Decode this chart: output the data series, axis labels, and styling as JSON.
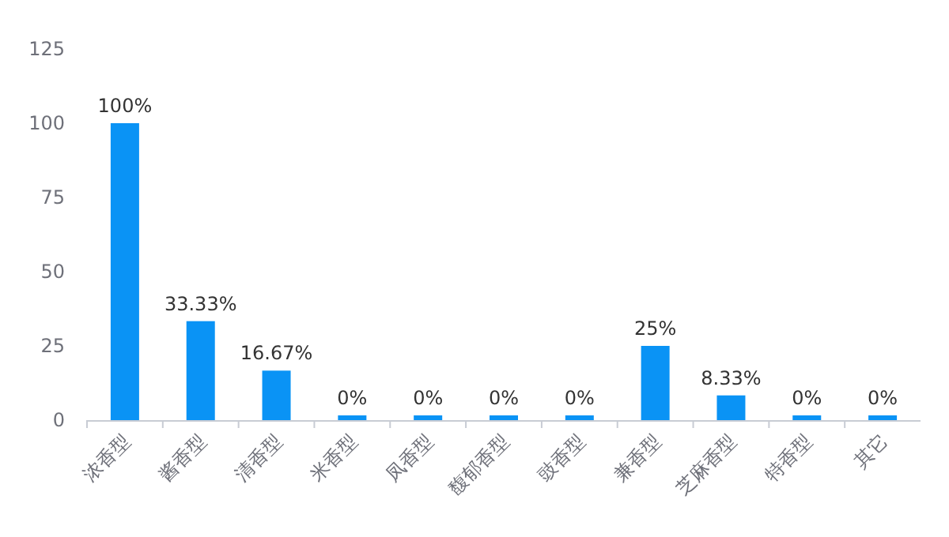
{
  "chart_data": {
    "type": "bar",
    "categories": [
      "浓香型",
      "酱香型",
      "清香型",
      "米香型",
      "凤香型",
      "馥郁香型",
      "豉香型",
      "兼香型",
      "芝麻香型",
      "特香型",
      "其它"
    ],
    "values": [
      100,
      33.33,
      16.67,
      0,
      0,
      0,
      0,
      25,
      8.33,
      0,
      0
    ],
    "value_labels": [
      "100%",
      "33.33%",
      "16.67%",
      "0%",
      "0%",
      "0%",
      "0%",
      "25%",
      "8.33%",
      "0%",
      "0%"
    ],
    "color": "#0a93f5",
    "ylim": [
      0,
      125
    ],
    "yticks": [
      0,
      25,
      50,
      75,
      100,
      125
    ],
    "grid": false
  }
}
